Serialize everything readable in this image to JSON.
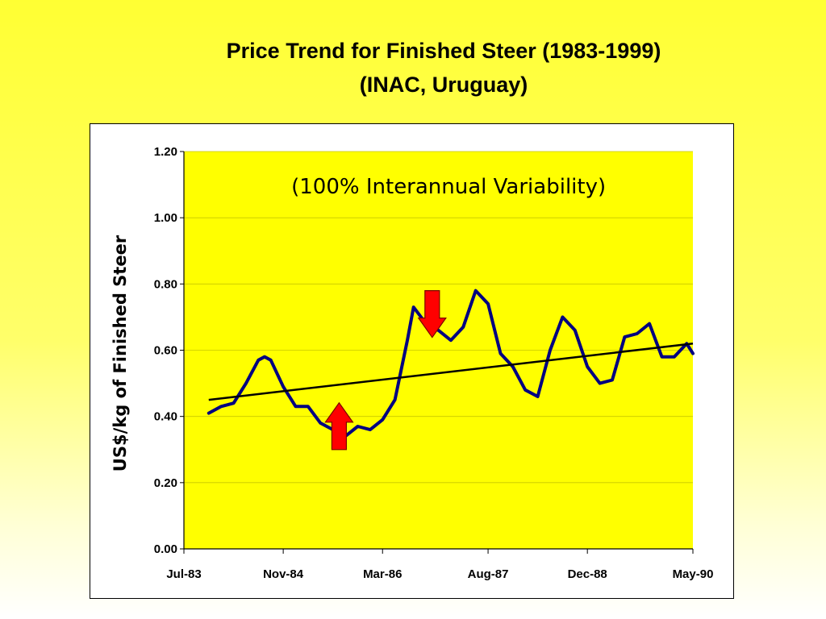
{
  "chart_data": {
    "type": "line",
    "title": "Price Trend for Finished Steer (1983-1999)",
    "subtitle": "(INAC, Uruguay)",
    "annotation": "(100% Interannual Variability)",
    "ylabel": "US$/kg of Finished Steer",
    "xlabel": "",
    "ylim": [
      0,
      1.2
    ],
    "yticks": [
      0,
      0.2,
      0.4,
      0.6,
      0.8,
      1.0,
      1.2
    ],
    "ytick_labels": [
      "0.00",
      "0.20",
      "0.40",
      "0.60",
      "0.80",
      "1.00",
      "1.20"
    ],
    "xlim": [
      "1983-07",
      "1990-05"
    ],
    "xticks": [
      "1983-07",
      "1984-11",
      "1986-03",
      "1987-08",
      "1988-12",
      "1990-05"
    ],
    "xtick_labels": [
      "Jul-83",
      "Nov-84",
      "Mar-86",
      "Aug-87",
      "Dec-88",
      "May-90"
    ],
    "grid": "horizontal",
    "plot_background": "#ffff00",
    "series": [
      {
        "color": "#000080",
        "x": [
          "1983-11",
          "1984-01",
          "1984-03",
          "1984-05",
          "1984-07",
          "1984-08",
          "1984-09",
          "1984-11",
          "1985-01",
          "1985-03",
          "1985-05",
          "1985-07",
          "1985-09",
          "1985-11",
          "1986-01",
          "1986-03",
          "1986-05",
          "1986-07",
          "1986-08",
          "1986-10",
          "1986-12",
          "1987-02",
          "1987-04",
          "1987-06",
          "1987-08",
          "1987-10",
          "1987-12",
          "1988-02",
          "1988-04",
          "1988-06",
          "1988-08",
          "1988-10",
          "1988-12",
          "1989-02",
          "1989-04",
          "1989-06",
          "1989-08",
          "1989-10",
          "1989-12",
          "1990-02",
          "1990-04",
          "1990-05"
        ],
        "y": [
          0.41,
          0.43,
          0.44,
          0.5,
          0.57,
          0.58,
          0.57,
          0.49,
          0.43,
          0.43,
          0.38,
          0.36,
          0.34,
          0.37,
          0.36,
          0.39,
          0.45,
          0.63,
          0.73,
          0.68,
          0.66,
          0.63,
          0.67,
          0.78,
          0.74,
          0.59,
          0.55,
          0.48,
          0.46,
          0.6,
          0.7,
          0.66,
          0.55,
          0.5,
          0.51,
          0.64,
          0.65,
          0.68,
          0.58,
          0.58,
          0.62,
          0.59
        ]
      }
    ],
    "trendline": {
      "color": "#000000",
      "x": [
        "1983-11",
        "1990-05"
      ],
      "y": [
        0.45,
        0.62
      ]
    },
    "markers": [
      {
        "type": "arrow-down",
        "color": "#ff0000",
        "x": "1986-11",
        "y": 0.78
      },
      {
        "type": "arrow-up",
        "color": "#ff0000",
        "x": "1985-08",
        "y": 0.3
      }
    ]
  }
}
